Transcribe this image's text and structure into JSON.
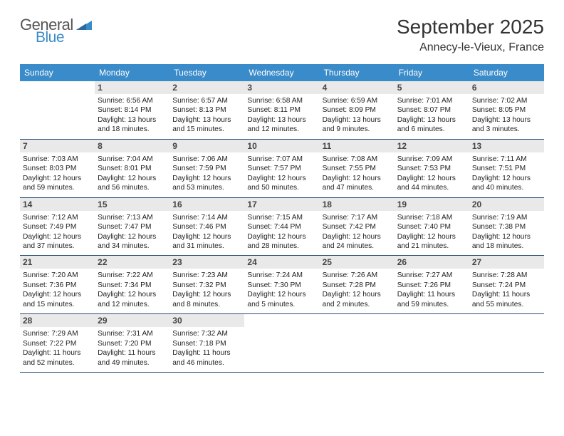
{
  "logo": {
    "general": "General",
    "blue": "Blue",
    "wedge_color": "#3a8bc9",
    "text_gray": "#555555"
  },
  "header": {
    "title": "September 2025",
    "location": "Annecy-le-Vieux, France"
  },
  "colors": {
    "header_bg": "#3a8bc9",
    "header_text": "#ffffff",
    "daynum_bg": "#e9e9e9",
    "daynum_text": "#444444",
    "body_text": "#222222",
    "rule": "#274b7a",
    "page_bg": "#ffffff"
  },
  "typography": {
    "title_fontsize": 28,
    "location_fontsize": 16,
    "dayhead_fontsize": 12,
    "daynum_fontsize": 12,
    "dayinfo_fontsize": 10.2
  },
  "calendar": {
    "type": "table",
    "columns": [
      "Sunday",
      "Monday",
      "Tuesday",
      "Wednesday",
      "Thursday",
      "Friday",
      "Saturday"
    ],
    "weeks": [
      [
        null,
        {
          "n": "1",
          "rise": "Sunrise: 6:56 AM",
          "set": "Sunset: 8:14 PM",
          "dl1": "Daylight: 13 hours",
          "dl2": "and 18 minutes."
        },
        {
          "n": "2",
          "rise": "Sunrise: 6:57 AM",
          "set": "Sunset: 8:13 PM",
          "dl1": "Daylight: 13 hours",
          "dl2": "and 15 minutes."
        },
        {
          "n": "3",
          "rise": "Sunrise: 6:58 AM",
          "set": "Sunset: 8:11 PM",
          "dl1": "Daylight: 13 hours",
          "dl2": "and 12 minutes."
        },
        {
          "n": "4",
          "rise": "Sunrise: 6:59 AM",
          "set": "Sunset: 8:09 PM",
          "dl1": "Daylight: 13 hours",
          "dl2": "and 9 minutes."
        },
        {
          "n": "5",
          "rise": "Sunrise: 7:01 AM",
          "set": "Sunset: 8:07 PM",
          "dl1": "Daylight: 13 hours",
          "dl2": "and 6 minutes."
        },
        {
          "n": "6",
          "rise": "Sunrise: 7:02 AM",
          "set": "Sunset: 8:05 PM",
          "dl1": "Daylight: 13 hours",
          "dl2": "and 3 minutes."
        }
      ],
      [
        {
          "n": "7",
          "rise": "Sunrise: 7:03 AM",
          "set": "Sunset: 8:03 PM",
          "dl1": "Daylight: 12 hours",
          "dl2": "and 59 minutes."
        },
        {
          "n": "8",
          "rise": "Sunrise: 7:04 AM",
          "set": "Sunset: 8:01 PM",
          "dl1": "Daylight: 12 hours",
          "dl2": "and 56 minutes."
        },
        {
          "n": "9",
          "rise": "Sunrise: 7:06 AM",
          "set": "Sunset: 7:59 PM",
          "dl1": "Daylight: 12 hours",
          "dl2": "and 53 minutes."
        },
        {
          "n": "10",
          "rise": "Sunrise: 7:07 AM",
          "set": "Sunset: 7:57 PM",
          "dl1": "Daylight: 12 hours",
          "dl2": "and 50 minutes."
        },
        {
          "n": "11",
          "rise": "Sunrise: 7:08 AM",
          "set": "Sunset: 7:55 PM",
          "dl1": "Daylight: 12 hours",
          "dl2": "and 47 minutes."
        },
        {
          "n": "12",
          "rise": "Sunrise: 7:09 AM",
          "set": "Sunset: 7:53 PM",
          "dl1": "Daylight: 12 hours",
          "dl2": "and 44 minutes."
        },
        {
          "n": "13",
          "rise": "Sunrise: 7:11 AM",
          "set": "Sunset: 7:51 PM",
          "dl1": "Daylight: 12 hours",
          "dl2": "and 40 minutes."
        }
      ],
      [
        {
          "n": "14",
          "rise": "Sunrise: 7:12 AM",
          "set": "Sunset: 7:49 PM",
          "dl1": "Daylight: 12 hours",
          "dl2": "and 37 minutes."
        },
        {
          "n": "15",
          "rise": "Sunrise: 7:13 AM",
          "set": "Sunset: 7:47 PM",
          "dl1": "Daylight: 12 hours",
          "dl2": "and 34 minutes."
        },
        {
          "n": "16",
          "rise": "Sunrise: 7:14 AM",
          "set": "Sunset: 7:46 PM",
          "dl1": "Daylight: 12 hours",
          "dl2": "and 31 minutes."
        },
        {
          "n": "17",
          "rise": "Sunrise: 7:15 AM",
          "set": "Sunset: 7:44 PM",
          "dl1": "Daylight: 12 hours",
          "dl2": "and 28 minutes."
        },
        {
          "n": "18",
          "rise": "Sunrise: 7:17 AM",
          "set": "Sunset: 7:42 PM",
          "dl1": "Daylight: 12 hours",
          "dl2": "and 24 minutes."
        },
        {
          "n": "19",
          "rise": "Sunrise: 7:18 AM",
          "set": "Sunset: 7:40 PM",
          "dl1": "Daylight: 12 hours",
          "dl2": "and 21 minutes."
        },
        {
          "n": "20",
          "rise": "Sunrise: 7:19 AM",
          "set": "Sunset: 7:38 PM",
          "dl1": "Daylight: 12 hours",
          "dl2": "and 18 minutes."
        }
      ],
      [
        {
          "n": "21",
          "rise": "Sunrise: 7:20 AM",
          "set": "Sunset: 7:36 PM",
          "dl1": "Daylight: 12 hours",
          "dl2": "and 15 minutes."
        },
        {
          "n": "22",
          "rise": "Sunrise: 7:22 AM",
          "set": "Sunset: 7:34 PM",
          "dl1": "Daylight: 12 hours",
          "dl2": "and 12 minutes."
        },
        {
          "n": "23",
          "rise": "Sunrise: 7:23 AM",
          "set": "Sunset: 7:32 PM",
          "dl1": "Daylight: 12 hours",
          "dl2": "and 8 minutes."
        },
        {
          "n": "24",
          "rise": "Sunrise: 7:24 AM",
          "set": "Sunset: 7:30 PM",
          "dl1": "Daylight: 12 hours",
          "dl2": "and 5 minutes."
        },
        {
          "n": "25",
          "rise": "Sunrise: 7:26 AM",
          "set": "Sunset: 7:28 PM",
          "dl1": "Daylight: 12 hours",
          "dl2": "and 2 minutes."
        },
        {
          "n": "26",
          "rise": "Sunrise: 7:27 AM",
          "set": "Sunset: 7:26 PM",
          "dl1": "Daylight: 11 hours",
          "dl2": "and 59 minutes."
        },
        {
          "n": "27",
          "rise": "Sunrise: 7:28 AM",
          "set": "Sunset: 7:24 PM",
          "dl1": "Daylight: 11 hours",
          "dl2": "and 55 minutes."
        }
      ],
      [
        {
          "n": "28",
          "rise": "Sunrise: 7:29 AM",
          "set": "Sunset: 7:22 PM",
          "dl1": "Daylight: 11 hours",
          "dl2": "and 52 minutes."
        },
        {
          "n": "29",
          "rise": "Sunrise: 7:31 AM",
          "set": "Sunset: 7:20 PM",
          "dl1": "Daylight: 11 hours",
          "dl2": "and 49 minutes."
        },
        {
          "n": "30",
          "rise": "Sunrise: 7:32 AM",
          "set": "Sunset: 7:18 PM",
          "dl1": "Daylight: 11 hours",
          "dl2": "and 46 minutes."
        },
        null,
        null,
        null,
        null
      ]
    ]
  }
}
